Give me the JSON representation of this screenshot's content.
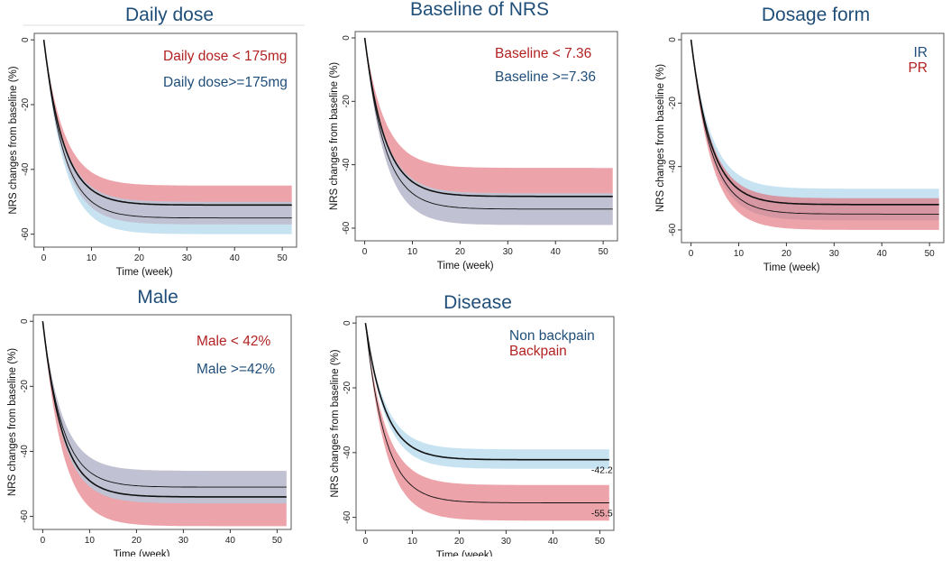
{
  "colors": {
    "red_band": "#e06670",
    "blue_band": "#a9d3ea",
    "red_text": "#b22222",
    "blue_text": "#1f4e79",
    "line": "#111111"
  },
  "chart_data": [
    {
      "type": "area",
      "title": "Daily dose",
      "xlabel": "Time (week)",
      "ylabel": "NRS changes from baseline (%)",
      "x_ticks": [
        0,
        10,
        20,
        30,
        40,
        50
      ],
      "y_ticks": [
        0,
        -20,
        -40,
        -60
      ],
      "xlim": [
        -2,
        53
      ],
      "ylim": [
        -64,
        2
      ],
      "x": [
        0,
        52
      ],
      "series": [
        {
          "name": "Daily dose < 175mg",
          "color": "red",
          "center_final": -51,
          "lower_final": -57,
          "upper_final": -45
        },
        {
          "name": "Daily dose>=175mg",
          "color": "blue",
          "center_final": -55,
          "lower_final": -60,
          "upper_final": -50
        }
      ],
      "annotations": []
    },
    {
      "type": "area",
      "title": "Baseline of NRS",
      "xlabel": "Time (week)",
      "ylabel": "NRS changes from baseline (%)",
      "x_ticks": [
        0,
        10,
        20,
        30,
        40,
        50
      ],
      "y_ticks": [
        0,
        -20,
        -40,
        -60
      ],
      "xlim": [
        -2,
        53
      ],
      "ylim": [
        -64,
        2
      ],
      "x": [
        0,
        52
      ],
      "series": [
        {
          "name": "Baseline < 7.36",
          "color": "red",
          "center_final": -50,
          "lower_final": -59,
          "upper_final": -41
        },
        {
          "name": "Baseline >=7.36",
          "color": "blue",
          "center_final": -54,
          "lower_final": -59,
          "upper_final": -49
        }
      ],
      "annotations": []
    },
    {
      "type": "area",
      "title": "Dosage form",
      "xlabel": "Time (week)",
      "ylabel": "NRS changes from baseline (%)",
      "x_ticks": [
        0,
        10,
        20,
        30,
        40,
        50
      ],
      "y_ticks": [
        0,
        -20,
        -40,
        -60
      ],
      "xlim": [
        -2,
        53
      ],
      "ylim": [
        -64,
        2
      ],
      "x": [
        0,
        52
      ],
      "series": [
        {
          "name": "IR",
          "color": "blue",
          "center_final": -52,
          "lower_final": -57,
          "upper_final": -47
        },
        {
          "name": "PR",
          "color": "red",
          "center_final": -55,
          "lower_final": -60,
          "upper_final": -50
        }
      ],
      "annotations": []
    },
    {
      "type": "area",
      "title": "Male",
      "xlabel": "Time (week)",
      "ylabel": "NRS changes from baseline (%)",
      "x_ticks": [
        0,
        10,
        20,
        30,
        40,
        50
      ],
      "y_ticks": [
        0,
        -20,
        -40,
        -60
      ],
      "xlim": [
        -2,
        53
      ],
      "ylim": [
        -64,
        2
      ],
      "x": [
        0,
        52
      ],
      "series": [
        {
          "name": "Male < 42%",
          "color": "red",
          "center_final": -54,
          "lower_final": -63,
          "upper_final": -46
        },
        {
          "name": "Male >=42%",
          "color": "blue",
          "center_final": -51,
          "lower_final": -56,
          "upper_final": -46
        }
      ],
      "annotations": []
    },
    {
      "type": "area",
      "title": "Disease",
      "xlabel": "Time (week)",
      "ylabel": "NRS changes from baseline (%)",
      "x_ticks": [
        0,
        10,
        20,
        30,
        40,
        50
      ],
      "y_ticks": [
        0,
        -20,
        -40,
        -60
      ],
      "xlim": [
        -2,
        53
      ],
      "ylim": [
        -64,
        2
      ],
      "x": [
        0,
        52
      ],
      "series": [
        {
          "name": "Non backpain",
          "color": "blue",
          "center_final": -42.2,
          "lower_final": -45,
          "upper_final": -39
        },
        {
          "name": "Backpain",
          "color": "red",
          "center_final": -55.5,
          "lower_final": -61,
          "upper_final": -50
        }
      ],
      "annotations": [
        "-42.2",
        "-55.5"
      ]
    }
  ]
}
